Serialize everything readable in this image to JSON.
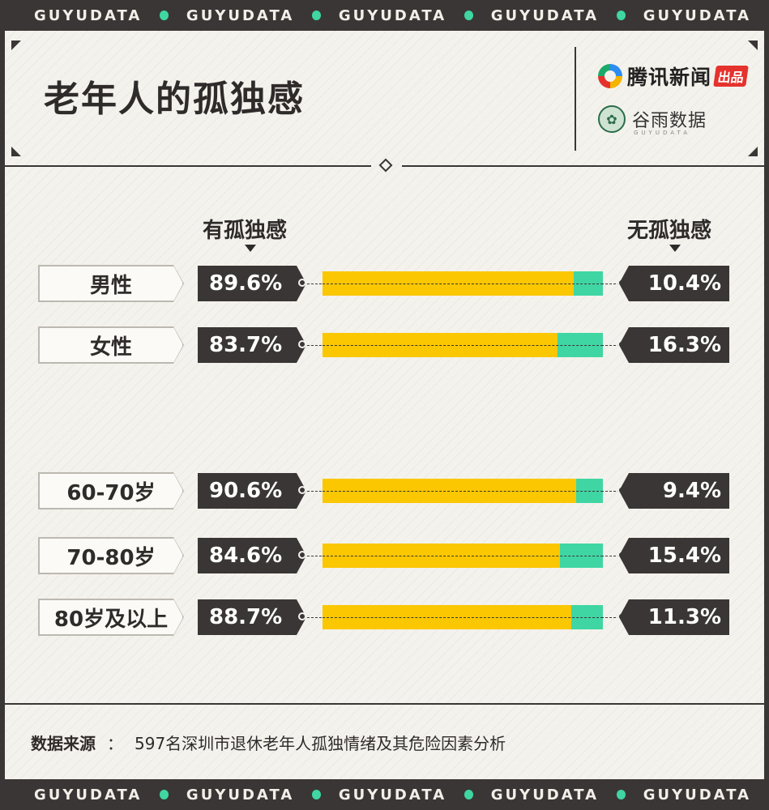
{
  "ticker": {
    "words": [
      "GUYUDATA",
      "GUYUDATA",
      "GUYUDATA",
      "GUYUDATA",
      "GUYUDATA"
    ],
    "dot_color": "#3fd6a3"
  },
  "header": {
    "title": "老年人的孤独感",
    "brand_primary": "腾讯新闻",
    "brand_primary_tag": "出品",
    "brand_secondary": "谷雨数据",
    "brand_secondary_sub": "GUYUDATA"
  },
  "chart_data": {
    "type": "bar",
    "orientation": "horizontal",
    "stacked": true,
    "legend_left": "有孤独感",
    "legend_right": "无孤独感",
    "categories": [
      "男性",
      "女性",
      "60-70岁",
      "70-80岁",
      "80岁及以上"
    ],
    "series": [
      {
        "name": "有孤独感",
        "color": "#fbc700",
        "values": [
          89.6,
          83.7,
          90.6,
          84.6,
          88.7
        ]
      },
      {
        "name": "无孤独感",
        "color": "#3fd6a3",
        "values": [
          10.4,
          16.3,
          9.4,
          15.4,
          11.3
        ]
      }
    ],
    "labels_left": [
      "89.6%",
      "83.7%",
      "90.6%",
      "84.6%",
      "88.7%"
    ],
    "labels_right": [
      "10.4%",
      "16.3%",
      "9.4%",
      "15.4%",
      "11.3%"
    ],
    "xlim": [
      0,
      100
    ]
  },
  "footer": {
    "source_label": "数据来源",
    "source_sep": "：",
    "source_text": "597名深圳市退休老年人孤独情绪及其危险因素分析"
  }
}
